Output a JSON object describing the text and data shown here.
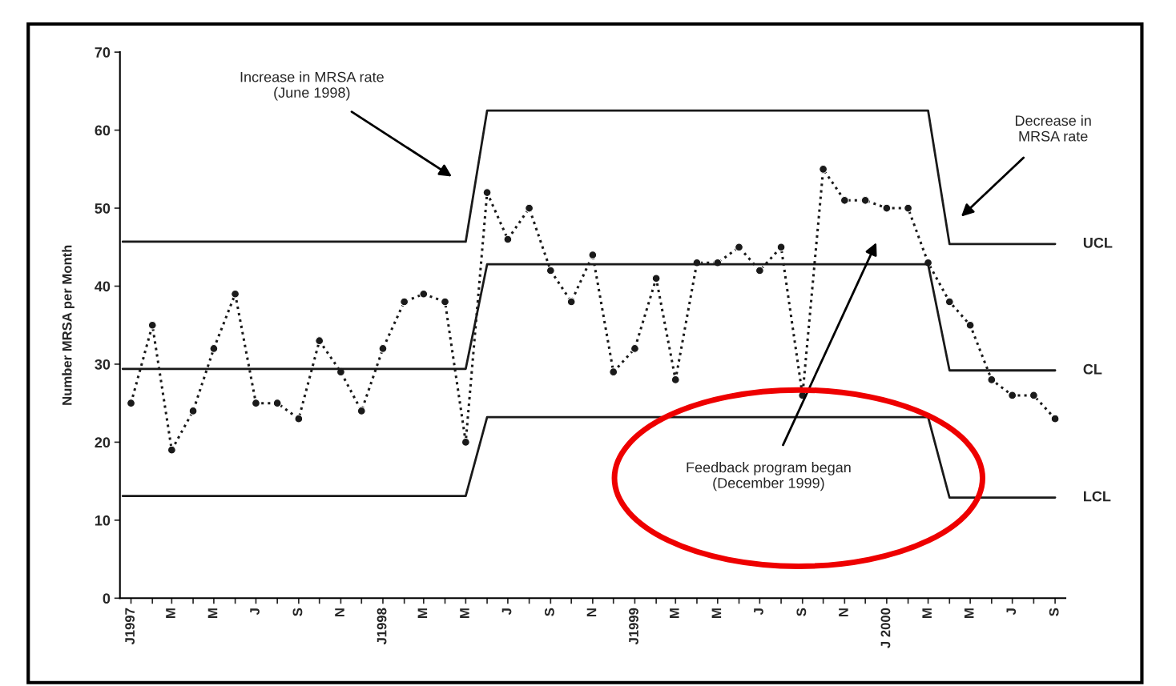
{
  "chart_data": {
    "type": "line",
    "ylabel": "Number MRSA per Month",
    "x": [
      "1997-01-01",
      "1997-02-01",
      "1997-03-01",
      "1997-04-01",
      "1997-05-01",
      "1997-06-01",
      "1997-07-01",
      "1997-08-01",
      "1997-09-01",
      "1997-10-01",
      "1997-11-01",
      "1997-12-01",
      "1998-01-01",
      "1998-02-01",
      "1998-03-01",
      "1998-04-01",
      "1998-05-01",
      "1998-06-01",
      "1998-07-01",
      "1998-08-01",
      "1998-09-01",
      "1998-10-01",
      "1998-11-01",
      "1998-12-01",
      "1999-01-01",
      "1999-02-01",
      "1999-03-01",
      "1999-04-01",
      "1999-05-01",
      "1999-06-01",
      "1999-07-01",
      "1999-08-01",
      "1999-09-01",
      "1999-10-01",
      "1999-11-01",
      "1999-12-01",
      "2000-01-01",
      "2000-02-01",
      "2000-03-01",
      "2000-04-01",
      "2000-05-01",
      "2000-06-01",
      "2000-07-01",
      "2000-08-01",
      "2000-09-01"
    ],
    "series": [
      {
        "color": "#1a1a1a",
        "line_style": "dotted",
        "marker": "circle",
        "values": [
          25,
          35,
          19,
          24,
          32,
          39,
          25,
          25,
          23,
          33,
          29,
          24,
          32,
          38,
          39,
          38,
          20,
          52,
          46,
          50,
          42,
          38,
          44,
          29,
          32,
          41,
          28,
          43,
          43,
          45,
          42,
          45,
          26,
          55,
          51,
          51,
          50,
          50,
          43,
          38,
          35,
          28,
          26,
          26,
          23
        ]
      },
      {
        "name": "UCL",
        "color": "#1a1a1a",
        "line_style": "solid",
        "marker": "none",
        "x": [
          "1996-12-20",
          "1998-05-01",
          "1998-06-01",
          "2000-03-01",
          "2000-04-01",
          "2000-09-01"
        ],
        "values": [
          45.7,
          45.7,
          62.5,
          62.5,
          45.4,
          45.4
        ]
      },
      {
        "name": "CL",
        "color": "#1a1a1a",
        "line_style": "solid",
        "marker": "none",
        "x": [
          "1996-12-20",
          "1998-05-01",
          "1998-06-01",
          "2000-03-01",
          "2000-04-01",
          "2000-09-01"
        ],
        "values": [
          29.4,
          29.4,
          42.8,
          42.8,
          29.2,
          29.2
        ]
      },
      {
        "name": "LCL",
        "color": "#1a1a1a",
        "line_style": "solid",
        "marker": "none",
        "x": [
          "1996-12-20",
          "1998-05-01",
          "1998-06-01",
          "2000-03-01",
          "2000-04-01",
          "2000-09-01"
        ],
        "values": [
          13.1,
          13.1,
          23.2,
          23.2,
          12.9,
          12.9
        ]
      }
    ],
    "xlim": [
      "1996-12-16",
      "2000-09-16"
    ],
    "xticks": [
      {
        "value": "1997-01-01",
        "label": "J1997"
      },
      {
        "value": "1997-02-01",
        "label": null
      },
      {
        "value": "1997-03-01",
        "label": "M"
      },
      {
        "value": "1997-04-01",
        "label": null
      },
      {
        "value": "1997-05-01",
        "label": "M"
      },
      {
        "value": "1997-06-01",
        "label": null
      },
      {
        "value": "1997-07-01",
        "label": "J"
      },
      {
        "value": "1997-08-01",
        "label": null
      },
      {
        "value": "1997-09-01",
        "label": "S"
      },
      {
        "value": "1997-10-01",
        "label": null
      },
      {
        "value": "1997-11-01",
        "label": "N"
      },
      {
        "value": "1997-12-01",
        "label": null
      },
      {
        "value": "1998-01-01",
        "label": "J1998"
      },
      {
        "value": "1998-02-01",
        "label": null
      },
      {
        "value": "1998-03-01",
        "label": "M"
      },
      {
        "value": "1998-04-01",
        "label": null
      },
      {
        "value": "1998-05-01",
        "label": "M"
      },
      {
        "value": "1998-06-01",
        "label": null
      },
      {
        "value": "1998-07-01",
        "label": "J"
      },
      {
        "value": "1998-08-01",
        "label": null
      },
      {
        "value": "1998-09-01",
        "label": "S"
      },
      {
        "value": "1998-10-01",
        "label": null
      },
      {
        "value": "1998-11-01",
        "label": "N"
      },
      {
        "value": "1998-12-01",
        "label": null
      },
      {
        "value": "1999-01-01",
        "label": "J1999"
      },
      {
        "value": "1999-02-01",
        "label": null
      },
      {
        "value": "1999-03-01",
        "label": "M"
      },
      {
        "value": "1999-04-01",
        "label": null
      },
      {
        "value": "1999-05-01",
        "label": "M"
      },
      {
        "value": "1999-06-01",
        "label": null
      },
      {
        "value": "1999-07-01",
        "label": "J"
      },
      {
        "value": "1999-08-01",
        "label": null
      },
      {
        "value": "1999-09-01",
        "label": "S"
      },
      {
        "value": "1999-10-01",
        "label": null
      },
      {
        "value": "1999-11-01",
        "label": "N"
      },
      {
        "value": "1999-12-01",
        "label": null
      },
      {
        "value": "2000-01-01",
        "label": "J 2000"
      },
      {
        "value": "2000-02-01",
        "label": null
      },
      {
        "value": "2000-03-01",
        "label": "M"
      },
      {
        "value": "2000-04-01",
        "label": null
      },
      {
        "value": "2000-05-01",
        "label": "M"
      },
      {
        "value": "2000-06-01",
        "label": null
      },
      {
        "value": "2000-07-01",
        "label": "J"
      },
      {
        "value": "2000-08-01",
        "label": null
      },
      {
        "value": "2000-09-01",
        "label": "S"
      }
    ],
    "ylim": [
      0,
      70
    ],
    "yticks": [
      0,
      10,
      20,
      30,
      40,
      50,
      60,
      70
    ],
    "grid": false,
    "legend": false,
    "annotations": [
      "Increase in MRSA rate\n(June 1998)",
      "Decrease in\nMRSA rate",
      "Feedback program began\n(December 1999)"
    ]
  }
}
